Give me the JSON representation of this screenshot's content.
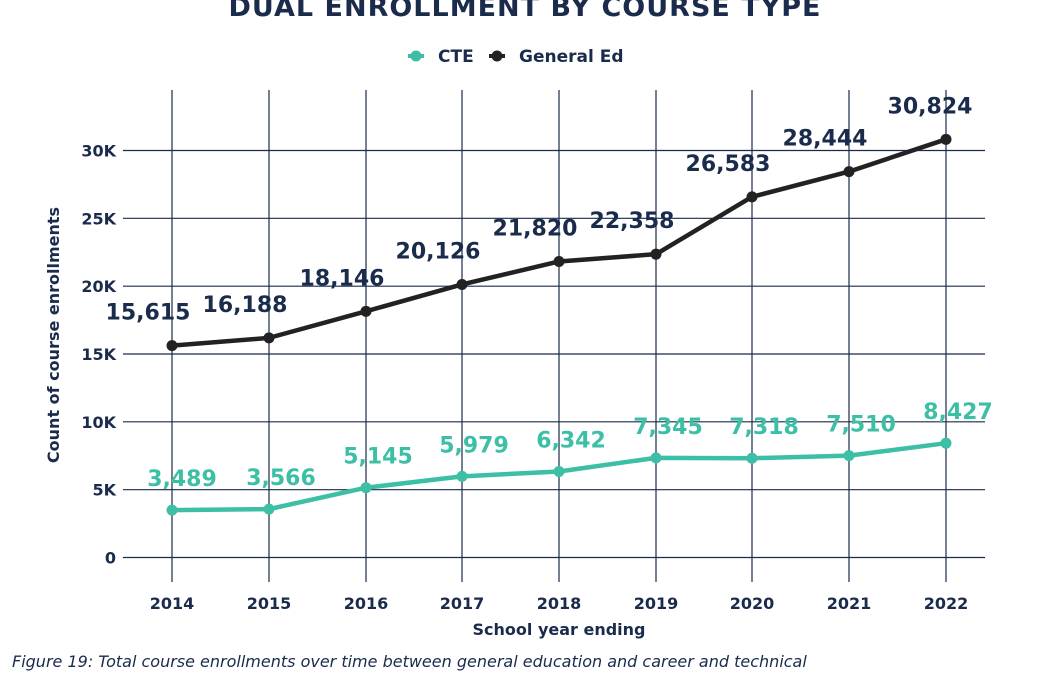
{
  "chart_data": {
    "type": "line",
    "title": "DUAL ENROLLMENT BY COURSE TYPE",
    "xlabel": "School year ending",
    "ylabel": "Count of course enrollments",
    "x": [
      "2014",
      "2015",
      "2016",
      "2017",
      "2018",
      "2019",
      "2020",
      "2021",
      "2022"
    ],
    "ylim": [
      0,
      33000
    ],
    "yticks": [
      0,
      5000,
      10000,
      15000,
      20000,
      25000,
      30000
    ],
    "ytick_labels": [
      "0",
      "5K",
      "10K",
      "15K",
      "20K",
      "25K",
      "30K"
    ],
    "grid": true,
    "legend_position": "top-center",
    "series": [
      {
        "name": "CTE",
        "color": "#3dbfa5",
        "values": [
          3489,
          3566,
          5145,
          5979,
          6342,
          7345,
          7318,
          7510,
          8427
        ],
        "labels": [
          "3,489",
          "3,566",
          "5,145",
          "5,979",
          "6,342",
          "7,345",
          "7,318",
          "7,510",
          "8,427"
        ]
      },
      {
        "name": "General Ed",
        "color": "#222222",
        "values": [
          15615,
          16188,
          18146,
          20126,
          21820,
          22358,
          26583,
          28444,
          30824
        ],
        "labels": [
          "15,615",
          "16,188",
          "18,146",
          "20,126",
          "21,820",
          "22,358",
          "26,583",
          "28,444",
          "30,824"
        ]
      }
    ]
  },
  "caption": "Figure 19: Total course enrollments over time between general education and career and technical"
}
